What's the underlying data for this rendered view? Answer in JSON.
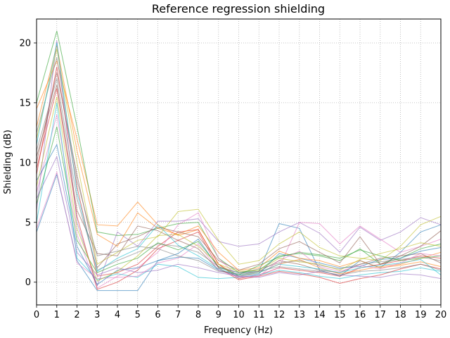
{
  "chart_data": {
    "type": "line",
    "title": "Reference regression shielding",
    "xlabel": "Frequency (Hz)",
    "ylabel": "Shielding (dB)",
    "xlim": [
      0,
      20
    ],
    "ylim": [
      -1.9,
      22
    ],
    "xticks": [
      0,
      1,
      2,
      3,
      4,
      5,
      6,
      7,
      8,
      9,
      10,
      11,
      12,
      13,
      14,
      15,
      16,
      17,
      18,
      19,
      20
    ],
    "yticks": [
      0,
      5,
      10,
      15,
      20
    ],
    "grid": true,
    "grid_style": "dotted",
    "legend": "none",
    "line_alpha": 0.6,
    "colors": [
      "#1f77b4",
      "#ff7f0e",
      "#2ca02c",
      "#d62728",
      "#9467bd",
      "#8c564b",
      "#e377c2",
      "#7f7f7f",
      "#bcbd22",
      "#17becf"
    ],
    "x": [
      0,
      1,
      2,
      3,
      4,
      5,
      6,
      7,
      8,
      9,
      10,
      11,
      12,
      13,
      14,
      15,
      16,
      17,
      18,
      19,
      20
    ],
    "series": [
      {
        "values": [
          4.2,
          9.0,
          1.8,
          -0.7,
          -0.7,
          -0.7,
          1.8,
          2.4,
          3.6,
          1.2,
          0.8,
          0.9,
          4.9,
          4.5,
          1.0,
          0.5,
          1.8,
          1.2,
          2.5,
          4.2,
          4.8
        ]
      },
      {
        "values": [
          14.5,
          18.5,
          12.0,
          4.8,
          4.7,
          6.7,
          4.8,
          3.9,
          4.4,
          1.5,
          0.5,
          0.8,
          1.5,
          1.9,
          1.2,
          0.7,
          1.0,
          1.3,
          1.5,
          2.0,
          2.5
        ]
      },
      {
        "values": [
          15.0,
          21.0,
          13.0,
          4.2,
          3.9,
          4.0,
          4.5,
          4.9,
          5.0,
          2.0,
          0.8,
          1.0,
          2.2,
          2.4,
          2.2,
          1.8,
          2.8,
          1.5,
          2.0,
          2.8,
          3.2
        ]
      },
      {
        "values": [
          9.0,
          18.0,
          8.0,
          0.5,
          0.8,
          1.5,
          3.0,
          4.2,
          4.4,
          1.5,
          0.3,
          0.6,
          1.2,
          1.0,
          0.8,
          0.5,
          1.2,
          1.5,
          1.8,
          2.2,
          2.0
        ]
      },
      {
        "values": [
          6.0,
          20.2,
          5.0,
          -0.3,
          4.2,
          3.0,
          5.1,
          5.1,
          5.3,
          3.4,
          3.0,
          3.2,
          4.2,
          5.0,
          4.1,
          2.5,
          4.6,
          3.5,
          4.2,
          5.4,
          4.8
        ]
      },
      {
        "values": [
          10.5,
          16.5,
          6.0,
          2.4,
          2.2,
          4.7,
          4.3,
          3.5,
          2.8,
          1.0,
          0.6,
          0.9,
          1.8,
          1.5,
          1.0,
          0.8,
          1.5,
          2.0,
          2.2,
          2.4,
          1.6
        ]
      },
      {
        "values": [
          7.5,
          14.0,
          4.0,
          -0.5,
          0.5,
          1.2,
          2.5,
          4.8,
          5.8,
          2.0,
          0.4,
          0.6,
          1.2,
          5.0,
          4.9,
          3.2,
          4.7,
          3.6,
          2.5,
          3.0,
          3.6
        ]
      },
      {
        "values": [
          11.0,
          17.0,
          7.0,
          1.0,
          1.8,
          2.5,
          3.2,
          3.0,
          2.5,
          1.3,
          0.8,
          1.1,
          1.6,
          1.8,
          1.4,
          1.1,
          1.5,
          1.7,
          1.9,
          2.1,
          1.8
        ]
      },
      {
        "values": [
          12.0,
          19.5,
          10.0,
          1.5,
          2.5,
          3.5,
          3.8,
          5.9,
          6.1,
          3.5,
          1.5,
          1.8,
          3.2,
          4.2,
          2.9,
          2.2,
          2.0,
          1.8,
          3.0,
          4.8,
          5.5
        ]
      },
      {
        "values": [
          5.0,
          15.0,
          2.0,
          0.2,
          0.7,
          0.4,
          1.5,
          1.3,
          0.4,
          0.3,
          0.4,
          0.6,
          1.0,
          0.8,
          0.5,
          0.3,
          0.6,
          0.8,
          0.9,
          1.2,
          0.9
        ]
      },
      {
        "values": [
          8.5,
          11.5,
          3.0,
          -0.2,
          1.0,
          1.2,
          1.8,
          2.1,
          2.0,
          1.0,
          0.5,
          0.7,
          2.4,
          2.0,
          1.6,
          1.2,
          1.3,
          1.9,
          2.0,
          2.6,
          2.9
        ]
      },
      {
        "values": [
          13.0,
          19.8,
          11.0,
          4.0,
          3.0,
          5.8,
          4.5,
          4.0,
          4.7,
          2.5,
          1.0,
          1.2,
          2.6,
          2.0,
          1.8,
          1.3,
          1.8,
          1.2,
          1.4,
          1.7,
          1.3
        ]
      },
      {
        "values": [
          6.5,
          13.0,
          3.5,
          0.8,
          1.5,
          2.0,
          3.3,
          2.7,
          3.4,
          1.3,
          0.6,
          1.4,
          2.1,
          2.5,
          2.3,
          2.0,
          2.7,
          2.2,
          1.8,
          2.0,
          2.2
        ]
      },
      {
        "values": [
          9.5,
          16.2,
          5.5,
          -0.6,
          0.0,
          1.0,
          2.8,
          3.5,
          4.2,
          1.2,
          0.2,
          0.5,
          0.9,
          0.7,
          0.4,
          -0.1,
          0.3,
          0.6,
          1.1,
          1.5,
          1.1
        ]
      },
      {
        "values": [
          7.0,
          10.5,
          2.5,
          0.6,
          1.2,
          0.8,
          1.0,
          1.5,
          1.2,
          0.8,
          0.5,
          0.4,
          0.8,
          0.6,
          0.9,
          0.6,
          0.5,
          0.4,
          0.7,
          0.6,
          0.3
        ]
      },
      {
        "values": [
          10.0,
          17.5,
          9.0,
          1.2,
          3.2,
          3.8,
          4.6,
          4.2,
          3.8,
          1.8,
          1.0,
          1.5,
          2.8,
          3.4,
          2.5,
          1.6,
          3.8,
          1.5,
          2.2,
          3.0,
          4.3
        ]
      },
      {
        "values": [
          4.5,
          9.2,
          1.6,
          0.3,
          0.4,
          0.5,
          1.6,
          2.0,
          3.2,
          1.0,
          0.4,
          0.5,
          1.8,
          2.6,
          1.3,
          0.9,
          1.4,
          1.1,
          1.6,
          2.4,
          2.2
        ]
      },
      {
        "values": [
          12.5,
          18.8,
          8.5,
          2.2,
          2.6,
          3.0,
          2.8,
          2.2,
          1.8,
          0.9,
          0.7,
          0.9,
          1.3,
          1.1,
          0.9,
          0.6,
          0.9,
          1.0,
          1.2,
          1.5,
          1.0
        ]
      },
      {
        "values": [
          8.0,
          15.5,
          4.5,
          0.1,
          0.9,
          2.2,
          3.9,
          4.0,
          3.0,
          1.5,
          0.9,
          1.0,
          2.0,
          1.7,
          1.5,
          1.0,
          1.9,
          2.4,
          2.8,
          3.3,
          3.0
        ]
      },
      {
        "values": [
          11.5,
          20.0,
          7.5,
          0.9,
          2.0,
          2.8,
          4.8,
          3.1,
          2.2,
          1.1,
          0.6,
          0.8,
          1.5,
          1.3,
          1.1,
          0.8,
          1.2,
          1.4,
          1.6,
          1.9,
          0.6
        ]
      }
    ]
  }
}
